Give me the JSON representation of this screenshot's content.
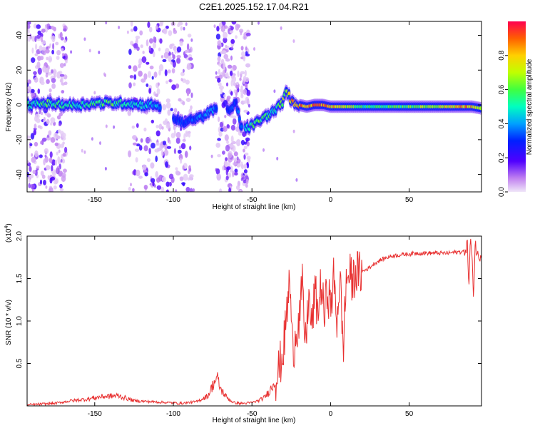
{
  "figure_title": "C2E1.2025.152.17.04.R21",
  "chart_data": [
    {
      "type": "heatmap",
      "title": "C2E1.2025.152.17.04.R21",
      "xlabel": "Height of straight line (km)",
      "ylabel": "Frequency (Hz)",
      "xlim": [
        -193,
        96
      ],
      "ylim": [
        -50,
        48
      ],
      "xticks": [
        -150,
        -100,
        -50,
        0,
        50
      ],
      "yticks": [
        -40,
        -20,
        0,
        20,
        40
      ],
      "colorscale": "rainbow",
      "colorbar_label": "Normalized spectral amplitude",
      "colorbar_ticks": [
        0.0,
        0.2,
        0.4,
        0.6,
        0.8
      ],
      "colorbar_range": [
        0,
        1
      ],
      "ridge": {
        "x": [
          -193,
          -180,
          -170,
          -160,
          -150,
          -140,
          -130,
          -120,
          -110,
          -100,
          -92,
          -85,
          -80,
          -75,
          -70,
          -65,
          -60,
          -57,
          -55,
          -50,
          -45,
          -40,
          -35,
          -30,
          -28,
          -25,
          -20,
          -15,
          -10,
          -5,
          0,
          10,
          20,
          30,
          40,
          50,
          60,
          70,
          80,
          90,
          96
        ],
        "freq": [
          0,
          1,
          0,
          0,
          1,
          1,
          1,
          0,
          0,
          -8,
          -10,
          -8,
          -6,
          -3,
          -2,
          -4,
          1,
          -12,
          -14,
          -12,
          -9,
          -6,
          -3,
          2,
          9,
          2,
          0,
          -1,
          0,
          0,
          -1,
          -1,
          -1,
          -1,
          -1,
          -1,
          -1,
          -1,
          -1,
          -1,
          -2
        ],
        "amplitude": [
          0.5,
          0.55,
          0.55,
          0.5,
          0.55,
          0.6,
          0.5,
          0.45,
          0.4,
          0.3,
          0.3,
          0.35,
          0.4,
          0.4,
          0.3,
          0.3,
          0.3,
          0.35,
          0.45,
          0.55,
          0.6,
          0.55,
          0.5,
          0.7,
          0.6,
          0.8,
          0.85,
          0.8,
          0.9,
          0.85,
          0.8,
          0.7,
          0.55,
          0.55,
          0.55,
          0.6,
          0.65,
          0.7,
          0.8,
          0.8,
          0.6
        ]
      },
      "noisy_bands_x": [
        [
          -193,
          -168
        ],
        [
          -128,
          -88
        ],
        [
          -72,
          -52
        ]
      ]
    },
    {
      "type": "line",
      "xlabel": "Height of straight line (km)",
      "ylabel": "SNR (10 * v/v)",
      "y_exponent_label": "(x10",
      "y_exponent_sup": "4",
      "y_exponent_close": ")",
      "xlim": [
        -193,
        96
      ],
      "ylim": [
        0,
        2.0
      ],
      "xticks": [
        -150,
        -100,
        -50,
        0,
        50
      ],
      "yticks": [
        0.5,
        1.0,
        1.5,
        2.0
      ],
      "series": [
        {
          "color": "#e83030",
          "x": [
            -193,
            -185,
            -175,
            -165,
            -155,
            -145,
            -135,
            -125,
            -115,
            -105,
            -95,
            -85,
            -78,
            -74,
            -72,
            -70,
            -66,
            -62,
            -58,
            -54,
            -50,
            -46,
            -42,
            -38,
            -34,
            -30,
            -28,
            -26,
            -24,
            -22,
            -20,
            -18,
            -16,
            -14,
            -12,
            -10,
            -8,
            -6,
            -4,
            -2,
            0,
            2,
            4,
            6,
            8,
            10,
            12,
            14,
            16,
            18,
            20,
            24,
            28,
            32,
            36,
            40,
            45,
            50,
            55,
            60,
            65,
            70,
            75,
            80,
            85,
            87,
            88,
            89,
            90,
            91,
            92,
            93,
            94,
            96
          ],
          "values": [
            0.01,
            0.02,
            0.03,
            0.06,
            0.08,
            0.11,
            0.12,
            0.06,
            0.05,
            0.04,
            0.03,
            0.05,
            0.12,
            0.28,
            0.32,
            0.2,
            0.1,
            0.04,
            0.03,
            0.03,
            0.04,
            0.06,
            0.1,
            0.2,
            0.35,
            0.65,
            1.05,
            1.5,
            0.6,
            0.9,
            1.0,
            1.4,
            0.7,
            1.3,
            0.9,
            1.35,
            1.1,
            1.45,
            1.05,
            1.4,
            1.15,
            1.5,
            1.0,
            1.55,
            0.65,
            1.5,
            1.55,
            1.45,
            1.6,
            1.55,
            1.58,
            1.62,
            1.68,
            1.72,
            1.75,
            1.77,
            1.78,
            1.79,
            1.8,
            1.8,
            1.8,
            1.8,
            1.8,
            1.81,
            1.82,
            1.9,
            1.4,
            2.0,
            1.7,
            1.3,
            1.95,
            1.8,
            1.75,
            1.8
          ]
        }
      ]
    }
  ]
}
